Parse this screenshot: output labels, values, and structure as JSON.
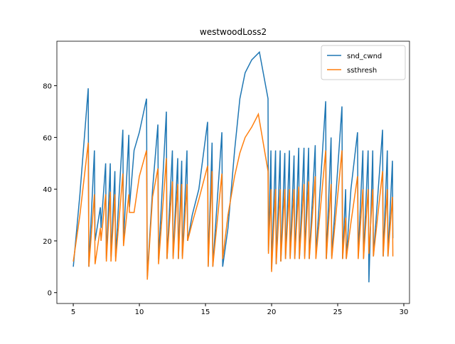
{
  "chart_data": {
    "type": "line",
    "title": "westwoodLoss2",
    "xlim": [
      3.76,
      30.43
    ],
    "ylim": [
      -4.2,
      97.2
    ],
    "xticks": [
      5,
      10,
      15,
      20,
      25,
      30
    ],
    "yticks": [
      0,
      20,
      40,
      60,
      80
    ],
    "legend": "upper right",
    "series": [
      {
        "name": "snd_cwnd",
        "color": "#1f77b4",
        "x": [
          5.0,
          5.5,
          6.13,
          6.18,
          6.6,
          6.65,
          7.05,
          7.1,
          7.45,
          7.5,
          7.8,
          7.85,
          8.15,
          8.2,
          8.75,
          8.8,
          9.2,
          9.25,
          9.6,
          10.0,
          10.54,
          10.6,
          11.0,
          11.4,
          11.45,
          12.04,
          12.09,
          12.5,
          12.55,
          12.9,
          12.95,
          13.2,
          13.25,
          13.6,
          13.65,
          14.0,
          14.5,
          15.16,
          15.2,
          15.5,
          15.55,
          16.24,
          16.3,
          16.7,
          17.2,
          17.6,
          18.0,
          18.5,
          19.08,
          19.73,
          19.76,
          19.95,
          20.0,
          20.3,
          20.35,
          20.65,
          20.7,
          21.0,
          21.05,
          21.35,
          21.4,
          21.7,
          21.75,
          22.05,
          22.1,
          22.45,
          22.5,
          22.8,
          22.85,
          23.3,
          23.35,
          24.09,
          24.14,
          24.5,
          24.55,
          25.32,
          25.37,
          25.6,
          25.65,
          26.0,
          26.5,
          26.55,
          26.9,
          26.95,
          27.3,
          27.36,
          27.65,
          27.7,
          28.39,
          28.44,
          28.75,
          28.8,
          29.14,
          29.17
        ],
        "values": [
          10,
          38,
          79,
          10,
          55,
          20,
          33,
          25,
          50,
          13,
          50,
          14,
          47,
          14,
          63,
          20,
          61,
          33,
          55,
          62,
          75,
          6,
          40,
          65,
          13,
          70,
          13,
          55,
          14,
          52,
          13,
          51,
          14,
          55,
          20,
          30,
          40,
          66,
          10,
          58,
          10,
          62,
          10,
          25,
          55,
          75,
          85,
          90,
          93,
          75,
          16,
          55,
          9,
          55,
          11,
          55,
          12,
          54,
          13,
          55,
          14,
          53,
          13,
          56,
          13,
          56,
          14,
          56,
          13,
          57,
          14,
          74,
          13,
          60,
          14,
          72,
          13,
          40,
          13,
          40,
          62,
          14,
          55,
          13,
          55,
          4,
          55,
          14,
          63,
          14,
          55,
          14,
          51,
          21
        ]
      },
      {
        "name": "ssthresh",
        "color": "#ff7f0e",
        "x": [
          5.0,
          5.5,
          6.13,
          6.18,
          6.6,
          6.65,
          7.05,
          7.1,
          7.45,
          7.5,
          7.8,
          7.85,
          8.15,
          8.2,
          8.75,
          8.8,
          9.2,
          9.25,
          9.6,
          10.0,
          10.54,
          10.6,
          11.0,
          11.4,
          11.45,
          12.04,
          12.09,
          12.5,
          12.55,
          12.9,
          12.95,
          13.2,
          13.25,
          13.6,
          13.65,
          14.0,
          14.5,
          15.16,
          15.2,
          15.5,
          15.55,
          16.24,
          16.3,
          16.7,
          17.2,
          17.6,
          18.0,
          18.5,
          19.0,
          19.73,
          19.76,
          19.95,
          20.0,
          20.3,
          20.35,
          20.65,
          20.7,
          21.0,
          21.05,
          21.35,
          21.4,
          21.7,
          21.75,
          22.05,
          22.1,
          22.45,
          22.5,
          22.8,
          22.85,
          23.3,
          23.35,
          24.09,
          24.14,
          24.5,
          24.55,
          25.32,
          25.37,
          25.6,
          25.65,
          26.0,
          26.5,
          26.55,
          26.9,
          26.95,
          27.3,
          27.36,
          27.65,
          27.7,
          28.39,
          28.44,
          28.75,
          28.8,
          29.14,
          29.17
        ],
        "values": [
          12,
          30,
          58,
          10,
          38,
          11,
          25,
          20,
          38,
          12,
          39,
          12,
          38,
          12,
          46,
          18,
          38,
          31,
          31,
          45,
          55,
          5,
          37,
          48,
          11,
          52,
          13,
          43,
          13,
          42,
          13,
          42,
          13,
          42,
          20,
          27,
          36,
          49,
          10,
          47,
          10,
          46,
          13,
          30,
          45,
          54,
          60,
          64,
          69,
          47,
          15,
          40,
          8,
          40,
          11,
          40,
          12,
          40,
          13,
          40,
          13,
          40,
          13,
          41,
          13,
          42,
          13,
          43,
          13,
          45,
          13,
          55,
          13,
          42,
          13,
          55,
          13,
          29,
          13,
          27,
          45,
          13,
          40,
          13,
          40,
          15,
          40,
          14,
          47,
          14,
          40,
          14,
          37,
          14
        ]
      }
    ]
  }
}
